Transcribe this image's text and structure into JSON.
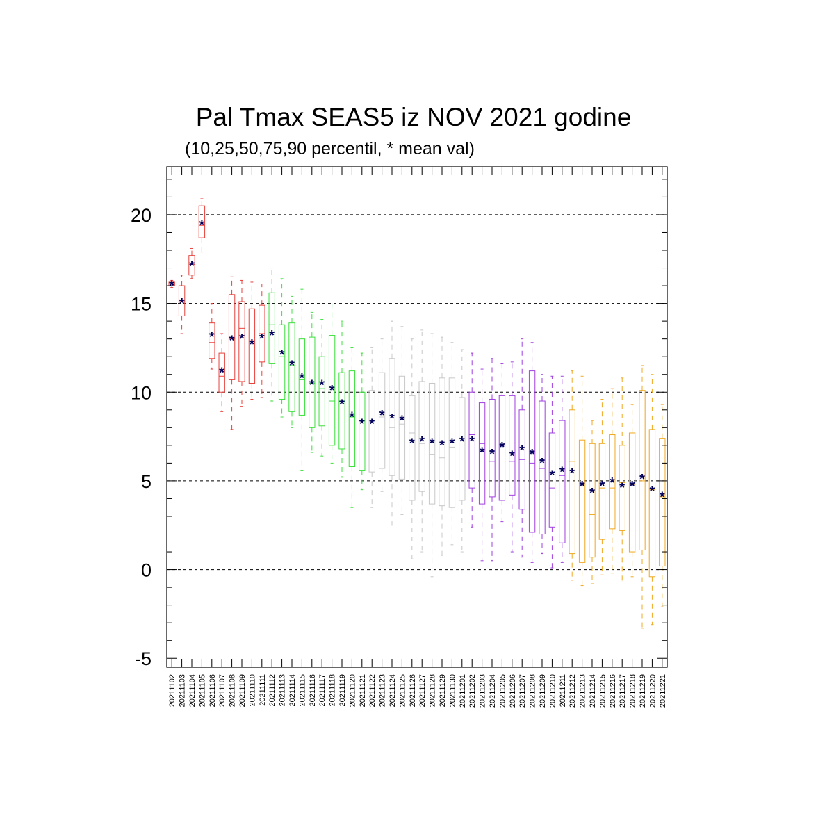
{
  "chart_data": {
    "type": "box",
    "title": "Pal Tmax SEAS5 iz NOV 2021 godine",
    "subtitle": "(10,25,50,75,90 percentil, * mean val)",
    "xlabel": "",
    "ylabel": "",
    "ylim": [
      -5.5,
      22.7
    ],
    "yticks": [
      -5,
      0,
      5,
      10,
      15,
      20
    ],
    "grid": "dashed horizontal lines at major ticks",
    "colors": {
      "nov_early": "#e8413c",
      "nov_mid": "#3ce03c",
      "nov_late": "#c8c8c8",
      "dec_early": "#a040e0",
      "dec_late": "#f0a820",
      "mean_marker": "#00005a"
    },
    "mean_marker": "*",
    "columns": [
      "date",
      "p10",
      "p25",
      "p50",
      "p75",
      "p90",
      "mean",
      "group"
    ],
    "boxes": [
      [
        "20211102",
        15.9,
        16.0,
        16.1,
        16.2,
        16.3,
        16.1,
        "nov_early"
      ],
      [
        "20211103",
        13.3,
        14.3,
        15.1,
        16.0,
        16.6,
        15.1,
        "nov_early"
      ],
      [
        "20211104",
        16.4,
        16.6,
        17.2,
        17.7,
        18.1,
        17.2,
        "nov_early"
      ],
      [
        "20211105",
        17.9,
        18.7,
        19.4,
        20.5,
        20.9,
        19.5,
        "nov_early"
      ],
      [
        "20211106",
        11.3,
        11.9,
        12.8,
        13.9,
        15.0,
        13.2,
        "nov_early"
      ],
      [
        "20211107",
        8.9,
        10.0,
        10.9,
        12.2,
        13.3,
        11.2,
        "nov_early"
      ],
      [
        "20211108",
        7.9,
        10.7,
        13.0,
        15.5,
        16.5,
        13.0,
        "nov_early"
      ],
      [
        "20211109",
        9.2,
        10.6,
        13.6,
        15.1,
        16.3,
        13.1,
        "nov_early"
      ],
      [
        "20211110",
        9.6,
        10.5,
        12.9,
        14.7,
        16.2,
        12.8,
        "nov_early"
      ],
      [
        "20211111",
        9.7,
        11.7,
        13.3,
        14.9,
        16.1,
        13.1,
        "nov_early"
      ],
      [
        "20211112",
        9.5,
        11.6,
        13.8,
        15.6,
        17.0,
        13.3,
        "nov_mid"
      ],
      [
        "20211113",
        8.6,
        9.6,
        12.0,
        13.8,
        16.4,
        12.2,
        "nov_mid"
      ],
      [
        "20211114",
        8.0,
        8.9,
        11.5,
        13.9,
        15.4,
        11.6,
        "nov_mid"
      ],
      [
        "20211115",
        5.6,
        8.7,
        10.7,
        13.0,
        15.8,
        10.9,
        "nov_mid"
      ],
      [
        "20211116",
        6.6,
        8.0,
        10.5,
        13.1,
        14.5,
        10.5,
        "nov_mid"
      ],
      [
        "20211117",
        6.4,
        8.1,
        10.2,
        12.0,
        14.1,
        10.5,
        "nov_mid"
      ],
      [
        "20211118",
        6.0,
        7.0,
        9.5,
        13.2,
        15.2,
        10.2,
        "nov_mid"
      ],
      [
        "20211119",
        5.2,
        6.8,
        9.5,
        11.1,
        14.0,
        9.4,
        "nov_mid"
      ],
      [
        "20211120",
        3.5,
        5.8,
        8.6,
        11.2,
        12.5,
        8.7,
        "nov_mid"
      ],
      [
        "20211121",
        4.5,
        5.6,
        8.4,
        10.0,
        12.2,
        8.3,
        "nov_mid"
      ],
      [
        "20211122",
        3.5,
        5.5,
        8.4,
        10.1,
        12.5,
        8.3,
        "nov_late"
      ],
      [
        "20211123",
        4.4,
        5.7,
        8.6,
        11.1,
        13.0,
        8.8,
        "nov_late"
      ],
      [
        "20211124",
        2.5,
        5.3,
        8.0,
        11.9,
        14.0,
        8.6,
        "nov_late"
      ],
      [
        "20211125",
        3.1,
        5.1,
        8.2,
        10.9,
        13.7,
        8.5,
        "nov_late"
      ],
      [
        "20211126",
        0.6,
        3.9,
        7.7,
        9.8,
        13.0,
        7.2,
        "nov_late"
      ],
      [
        "20211127",
        1.0,
        4.4,
        7.1,
        10.6,
        13.5,
        7.3,
        "nov_late"
      ],
      [
        "20211128",
        -0.4,
        3.7,
        6.5,
        10.5,
        13.3,
        7.2,
        "nov_late"
      ],
      [
        "20211129",
        0.8,
        3.6,
        6.3,
        10.8,
        13.1,
        7.1,
        "nov_late"
      ],
      [
        "20211130",
        1.4,
        3.5,
        6.9,
        10.8,
        12.8,
        7.2,
        "nov_late"
      ],
      [
        "20211201",
        1.0,
        3.9,
        7.4,
        9.7,
        12.4,
        7.3,
        "nov_late"
      ],
      [
        "20211202",
        2.4,
        4.6,
        7.6,
        10.0,
        12.2,
        7.3,
        "dec_early"
      ],
      [
        "20211203",
        0.5,
        3.7,
        7.1,
        9.4,
        11.3,
        6.7,
        "dec_early"
      ],
      [
        "20211204",
        0.5,
        4.1,
        6.1,
        9.6,
        11.9,
        6.6,
        "dec_early"
      ],
      [
        "20211205",
        2.7,
        3.9,
        7.0,
        9.8,
        11.6,
        7.0,
        "dec_early"
      ],
      [
        "20211206",
        1.0,
        4.2,
        6.1,
        9.8,
        11.7,
        6.5,
        "dec_early"
      ],
      [
        "20211207",
        0.7,
        3.4,
        6.2,
        9.0,
        13.0,
        6.8,
        "dec_early"
      ],
      [
        "20211208",
        0.4,
        2.1,
        6.0,
        11.2,
        12.8,
        6.6,
        "dec_early"
      ],
      [
        "20211209",
        0.9,
        2.0,
        5.7,
        9.5,
        11.0,
        6.1,
        "dec_early"
      ],
      [
        "20211210",
        0.1,
        2.4,
        4.6,
        7.7,
        10.9,
        5.4,
        "dec_early"
      ],
      [
        "20211211",
        0.4,
        1.5,
        5.3,
        8.4,
        10.9,
        5.6,
        "dec_early"
      ],
      [
        "20211212",
        -0.6,
        0.9,
        6.1,
        9.0,
        11.2,
        5.5,
        "dec_late"
      ],
      [
        "20211213",
        -0.9,
        0.4,
        4.7,
        7.3,
        10.9,
        4.8,
        "dec_late"
      ],
      [
        "20211214",
        -0.8,
        0.7,
        3.1,
        7.1,
        8.4,
        4.4,
        "dec_late"
      ],
      [
        "20211215",
        -0.3,
        1.7,
        4.6,
        7.1,
        9.6,
        4.8,
        "dec_late"
      ],
      [
        "20211216",
        -0.2,
        2.3,
        4.6,
        7.6,
        10.2,
        5.0,
        "dec_late"
      ],
      [
        "20211217",
        -0.7,
        2.2,
        4.9,
        7.0,
        10.8,
        4.7,
        "dec_late"
      ],
      [
        "20211218",
        -0.4,
        1.0,
        4.8,
        7.7,
        9.3,
        4.8,
        "dec_late"
      ],
      [
        "20211219",
        -3.3,
        1.1,
        5.0,
        10.1,
        11.5,
        5.2,
        "dec_late"
      ],
      [
        "20211220",
        -3.1,
        -0.4,
        4.5,
        7.9,
        11.0,
        4.5,
        "dec_late"
      ],
      [
        "20211221",
        -2.1,
        0.2,
        4.1,
        7.4,
        9.3,
        4.2,
        "dec_late"
      ]
    ]
  }
}
